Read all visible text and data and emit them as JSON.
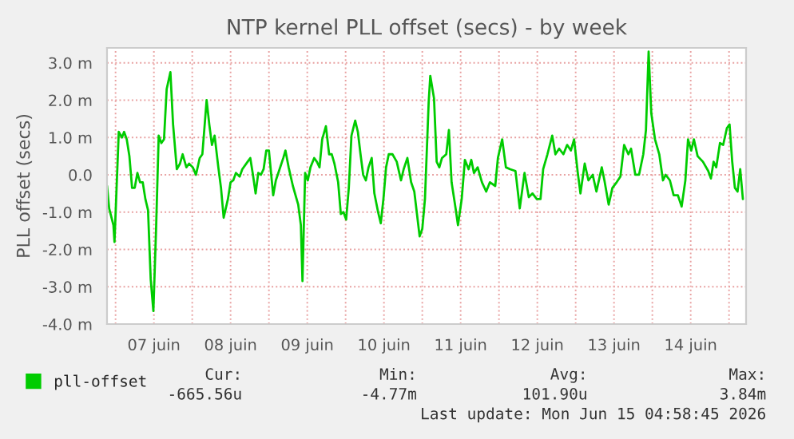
{
  "chart_data": {
    "type": "line",
    "title": "NTP kernel PLL offset (secs) - by week",
    "ylabel": "PLL offset (secs)",
    "x": [
      "2026-06-06T21:20",
      "2026-06-06T22:00",
      "2026-06-06T23:20",
      "2026-06-06T23:40",
      "2026-06-07T01:00",
      "2026-06-07T02:00",
      "2026-06-07T02:40",
      "2026-06-07T03:30",
      "2026-06-07T04:20",
      "2026-06-07T05:10",
      "2026-06-07T06:00",
      "2026-06-07T06:50",
      "2026-06-07T07:40",
      "2026-06-07T08:30",
      "2026-06-07T09:20",
      "2026-06-07T10:10",
      "2026-06-07T11:00",
      "2026-06-07T11:50",
      "2026-06-07T12:40",
      "2026-06-07T13:30",
      "2026-06-07T14:20",
      "2026-06-07T15:10",
      "2026-06-07T16:00",
      "2026-06-07T17:10",
      "2026-06-07T18:00",
      "2026-06-07T19:10",
      "2026-06-07T20:10",
      "2026-06-07T21:00",
      "2026-06-07T22:10",
      "2026-06-07T23:00",
      "2026-06-08T00:10",
      "2026-06-08T01:10",
      "2026-06-08T02:20",
      "2026-06-08T03:10",
      "2026-06-08T04:30",
      "2026-06-08T05:20",
      "2026-06-08T06:10",
      "2026-06-08T07:00",
      "2026-06-08T08:10",
      "2026-06-08T09:00",
      "2026-06-08T09:50",
      "2026-06-08T11:10",
      "2026-06-08T12:00",
      "2026-06-08T12:50",
      "2026-06-08T13:40",
      "2026-06-08T14:50",
      "2026-06-08T15:40",
      "2026-06-08T17:20",
      "2026-06-08T18:10",
      "2026-06-08T19:00",
      "2026-06-08T19:50",
      "2026-06-08T20:40",
      "2026-06-08T21:30",
      "2026-06-08T22:20",
      "2026-06-08T23:10",
      "2026-06-09T00:00",
      "2026-06-09T01:20",
      "2026-06-09T02:10",
      "2026-06-09T03:20",
      "2026-06-09T04:30",
      "2026-06-09T05:10",
      "2026-06-09T06:10",
      "2026-06-09T07:30",
      "2026-06-09T09:10",
      "2026-06-09T10:00",
      "2026-06-09T10:30",
      "2026-06-09T11:20",
      "2026-06-09T12:10",
      "2026-06-09T13:00",
      "2026-06-09T14:10",
      "2026-06-09T15:00",
      "2026-06-09T15:50",
      "2026-06-09T16:40",
      "2026-06-09T17:50",
      "2026-06-09T18:50",
      "2026-06-09T19:40",
      "2026-06-09T20:30",
      "2026-06-09T21:40",
      "2026-06-09T22:30",
      "2026-06-09T23:20",
      "2026-06-10T00:10",
      "2026-06-10T01:00",
      "2026-06-10T01:50",
      "2026-06-10T03:00",
      "2026-06-10T03:50",
      "2026-06-10T04:40",
      "2026-06-10T05:30",
      "2026-06-10T06:20",
      "2026-06-10T07:10",
      "2026-06-10T08:10",
      "2026-06-10T09:00",
      "2026-06-10T10:10",
      "2026-06-10T11:00",
      "2026-06-10T11:50",
      "2026-06-10T12:40",
      "2026-06-10T13:30",
      "2026-06-10T14:40",
      "2026-06-10T16:00",
      "2026-06-10T17:20",
      "2026-06-10T18:10",
      "2026-06-10T19:20",
      "2026-06-10T20:30",
      "2026-06-10T21:30",
      "2026-06-10T22:20",
      "2026-06-10T23:10",
      "2026-06-11T00:00",
      "2026-06-11T00:50",
      "2026-06-11T02:00",
      "2026-06-11T02:30",
      "2026-06-11T03:40",
      "2026-06-11T04:30",
      "2026-06-11T05:20",
      "2026-06-11T06:10",
      "2026-06-11T07:30",
      "2026-06-11T08:20",
      "2026-06-11T09:10",
      "2026-06-11T10:20",
      "2026-06-11T11:10",
      "2026-06-11T12:20",
      "2026-06-11T13:20",
      "2026-06-11T14:30",
      "2026-06-11T15:20",
      "2026-06-11T16:10",
      "2026-06-11T17:20",
      "2026-06-11T18:40",
      "2026-06-11T20:00",
      "2026-06-11T21:10",
      "2026-06-11T22:50",
      "2026-06-11T23:40",
      "2026-06-12T01:00",
      "2026-06-12T02:10",
      "2026-06-12T03:30",
      "2026-06-12T05:10",
      "2026-06-12T06:30",
      "2026-06-12T08:00",
      "2026-06-12T09:20",
      "2026-06-12T10:30",
      "2026-06-12T11:50",
      "2026-06-12T13:00",
      "2026-06-12T13:50",
      "2026-06-12T15:10",
      "2026-06-12T16:40",
      "2026-06-12T17:40",
      "2026-06-12T18:50",
      "2026-06-12T20:10",
      "2026-06-12T21:20",
      "2026-06-12T22:30",
      "2026-06-12T23:30",
      "2026-06-13T00:40",
      "2026-06-13T01:30",
      "2026-06-13T02:50",
      "2026-06-13T04:00",
      "2026-06-13T05:20",
      "2026-06-13T06:30",
      "2026-06-13T08:10",
      "2026-06-13T09:00",
      "2026-06-13T10:20",
      "2026-06-13T11:30",
      "2026-06-13T12:50",
      "2026-06-13T14:00",
      "2026-06-13T15:10",
      "2026-06-13T16:30",
      "2026-06-13T17:20",
      "2026-06-13T18:40",
      "2026-06-13T19:50",
      "2026-06-13T21:10",
      "2026-06-13T22:00",
      "2026-06-13T22:50",
      "2026-06-13T23:40",
      "2026-06-14T00:50",
      "2026-06-14T02:10",
      "2026-06-14T03:20",
      "2026-06-14T04:10",
      "2026-06-14T05:30",
      "2026-06-14T06:40",
      "2026-06-14T08:00",
      "2026-06-14T09:10",
      "2026-06-14T10:20",
      "2026-06-14T11:10",
      "2026-06-14T12:10",
      "2026-06-14T13:00",
      "2026-06-14T14:10",
      "2026-06-14T15:50",
      "2026-06-14T17:30",
      "2026-06-14T18:20",
      "2026-06-14T19:10",
      "2026-06-14T20:00",
      "2026-06-14T21:10",
      "2026-06-14T22:10",
      "2026-06-14T23:20",
      "2026-06-15T00:10",
      "2026-06-15T01:00",
      "2026-06-15T01:50",
      "2026-06-15T02:40",
      "2026-06-15T03:30",
      "2026-06-15T04:20"
    ],
    "series": [
      {
        "name": "pll-offset",
        "color": "#00cc00",
        "values": [
          -0.3,
          -0.9,
          -1.35,
          -1.8,
          1.15,
          1.0,
          1.15,
          0.95,
          0.5,
          -0.35,
          -0.35,
          0.05,
          -0.2,
          -0.2,
          -0.65,
          -0.95,
          -2.8,
          -3.65,
          -1.5,
          1.05,
          0.85,
          0.95,
          2.3,
          2.75,
          1.35,
          0.15,
          0.3,
          0.55,
          0.2,
          0.3,
          0.2,
          0.0,
          0.45,
          0.55,
          2.0,
          1.35,
          0.8,
          1.05,
          0.2,
          -0.35,
          -1.15,
          -0.65,
          -0.2,
          -0.15,
          0.05,
          -0.05,
          0.15,
          0.35,
          0.45,
          0.0,
          -0.5,
          0.05,
          0.0,
          0.15,
          0.65,
          0.65,
          -0.55,
          -0.15,
          0.15,
          0.45,
          0.65,
          0.2,
          -0.3,
          -0.8,
          -1.35,
          -2.85,
          0.05,
          -0.15,
          0.2,
          0.45,
          0.35,
          0.2,
          0.95,
          1.3,
          0.55,
          0.55,
          0.3,
          -0.2,
          -1.05,
          -1.0,
          -1.2,
          -0.35,
          1.05,
          1.45,
          1.15,
          0.55,
          0.0,
          -0.15,
          0.2,
          0.45,
          -0.5,
          -1.0,
          -1.3,
          -0.65,
          0.2,
          0.55,
          0.55,
          0.35,
          -0.15,
          0.15,
          0.45,
          -0.2,
          -0.45,
          -1.05,
          -1.65,
          -1.45,
          -0.65,
          1.95,
          2.65,
          2.05,
          0.35,
          0.2,
          0.45,
          0.55,
          1.2,
          -0.2,
          -0.85,
          -1.35,
          -0.65,
          0.4,
          0.15,
          0.4,
          0.05,
          0.2,
          -0.2,
          -0.45,
          -0.2,
          -0.3,
          0.45,
          0.95,
          0.2,
          0.15,
          0.1,
          -0.9,
          0.05,
          -0.6,
          -0.5,
          -0.65,
          -0.65,
          0.15,
          0.55,
          1.05,
          0.55,
          0.7,
          0.55,
          0.8,
          0.65,
          0.95,
          0.05,
          -0.5,
          0.3,
          -0.15,
          0.0,
          -0.45,
          0.2,
          -0.15,
          -0.8,
          -0.35,
          -0.2,
          -0.05,
          0.8,
          0.55,
          0.7,
          0.0,
          0.0,
          0.55,
          1.2,
          3.3,
          1.65,
          0.95,
          0.55,
          -0.15,
          0.0,
          -0.15,
          -0.55,
          -0.55,
          -0.85,
          -0.15,
          0.95,
          0.65,
          0.95,
          0.5,
          0.35,
          0.1,
          -0.1,
          0.35,
          0.2,
          0.85,
          0.8,
          1.25,
          1.35,
          0.35,
          -0.35,
          -0.45,
          0.15,
          -0.65
        ]
      }
    ],
    "xlim": [
      "2026-06-06T21:20",
      "2026-06-15T05:20"
    ],
    "xticks": [
      {
        "value": "2026-06-07T00:00",
        "label": null
      },
      {
        "value": "2026-06-07T12:00",
        "label": "07 juin"
      },
      {
        "value": "2026-06-08T00:00",
        "label": null
      },
      {
        "value": "2026-06-08T12:00",
        "label": "08 juin"
      },
      {
        "value": "2026-06-09T00:00",
        "label": null
      },
      {
        "value": "2026-06-09T12:00",
        "label": "09 juin"
      },
      {
        "value": "2026-06-10T00:00",
        "label": null
      },
      {
        "value": "2026-06-10T12:00",
        "label": "10 juin"
      },
      {
        "value": "2026-06-11T00:00",
        "label": null
      },
      {
        "value": "2026-06-11T12:00",
        "label": "11 juin"
      },
      {
        "value": "2026-06-12T00:00",
        "label": null
      },
      {
        "value": "2026-06-12T12:00",
        "label": "12 juin"
      },
      {
        "value": "2026-06-13T00:00",
        "label": null
      },
      {
        "value": "2026-06-13T12:00",
        "label": "13 juin"
      },
      {
        "value": "2026-06-14T00:00",
        "label": null
      },
      {
        "value": "2026-06-14T12:00",
        "label": "14 juin"
      },
      {
        "value": "2026-06-15T00:00",
        "label": null
      }
    ],
    "ylim": [
      -4.0,
      3.4
    ],
    "yticks": [
      {
        "value": -4,
        "label": "-4.0 m"
      },
      {
        "value": -3,
        "label": "-3.0 m"
      },
      {
        "value": -2,
        "label": "-2.0 m"
      },
      {
        "value": -1,
        "label": "-1.0 m"
      },
      {
        "value": 0,
        "label": "0.0"
      },
      {
        "value": 1,
        "label": "1.0 m"
      },
      {
        "value": 2,
        "label": "2.0 m"
      },
      {
        "value": 3,
        "label": "3.0 m"
      }
    ],
    "grid": true,
    "legend": "bottom left",
    "marker": "none",
    "line_style": "solid",
    "annotations": [
      "Cur:",
      "Min:",
      "Avg:",
      "Max:",
      "-665.56u",
      "-4.77m",
      "101.90u",
      "3.84m",
      "Last update: Mon Jun 15 04:58:45 2026"
    ]
  }
}
